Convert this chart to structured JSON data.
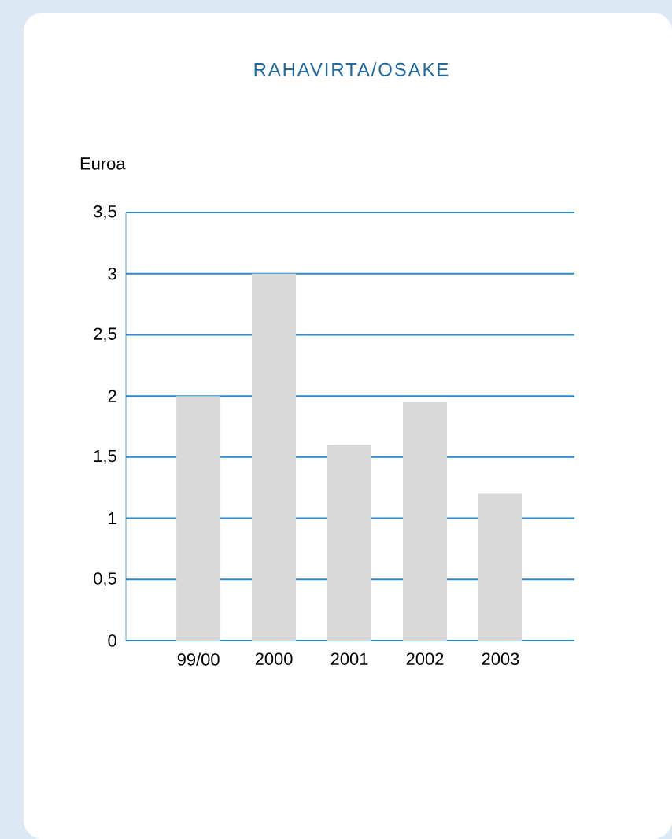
{
  "chart_data": {
    "type": "bar",
    "title": "RAHAVIRTA/OSAKE",
    "ylabel": "Euroa",
    "categories": [
      "99/00",
      "2000",
      "2001",
      "2002",
      "2003"
    ],
    "values": [
      2.0,
      3.0,
      1.6,
      1.95,
      1.2
    ],
    "color": "#d9d9d9",
    "ylim": [
      0,
      3.5
    ],
    "yticks": [
      0,
      {
        "value": 0.5,
        "label": "0,5"
      },
      1,
      {
        "value": 1.5,
        "label": "1,5"
      },
      2,
      {
        "value": 2.5,
        "label": "2,5"
      },
      3,
      {
        "value": 3.5,
        "label": "3,5"
      }
    ],
    "grid": "y"
  }
}
